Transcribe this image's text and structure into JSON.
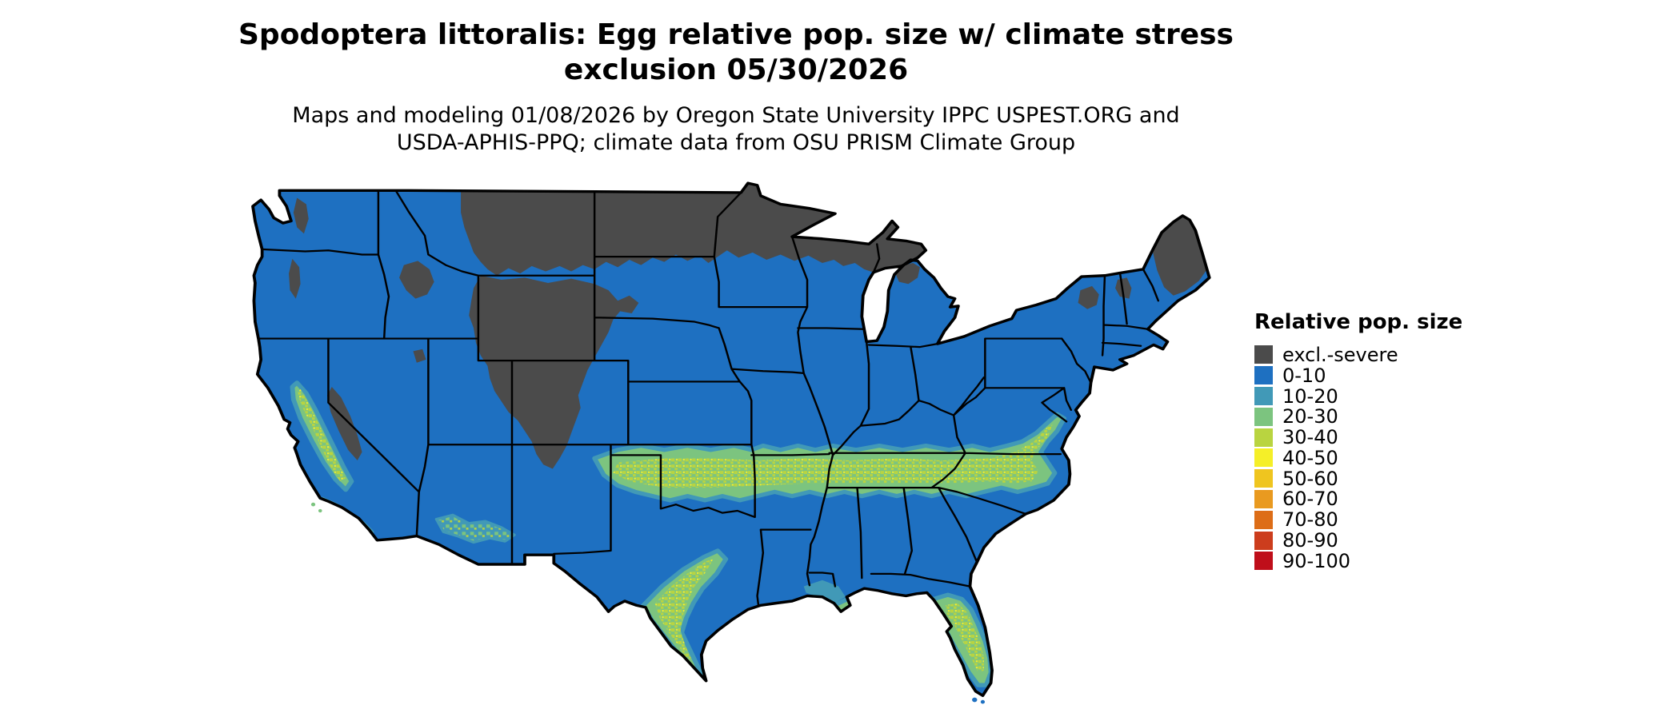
{
  "figure": {
    "title_line1": "Spodoptera littoralis: Egg relative pop. size w/ climate stress",
    "title_line2": "exclusion 05/30/2026",
    "subtitle_line1": "Maps and modeling 01/08/2026 by Oregon State University IPPC USPEST.ORG and",
    "subtitle_line2": "USDA-APHIS-PPQ; climate data from OSU PRISM Climate Group"
  },
  "legend": {
    "title": "Relative pop. size",
    "items": [
      {
        "key": "excl",
        "label": "excl.-severe",
        "color": "#4b4b4b"
      },
      {
        "key": "r0",
        "label": "0-10",
        "color": "#1e70c1"
      },
      {
        "key": "r10",
        "label": "10-20",
        "color": "#4199b7"
      },
      {
        "key": "r20",
        "label": "20-30",
        "color": "#7cc47f"
      },
      {
        "key": "r30",
        "label": "30-40",
        "color": "#b9d440"
      },
      {
        "key": "r40",
        "label": "40-50",
        "color": "#f5ef28"
      },
      {
        "key": "r50",
        "label": "50-60",
        "color": "#efc51f"
      },
      {
        "key": "r60",
        "label": "60-70",
        "color": "#e99a20"
      },
      {
        "key": "r70",
        "label": "70-80",
        "color": "#dd6d17"
      },
      {
        "key": "r80",
        "label": "80-90",
        "color": "#cc3d1d"
      },
      {
        "key": "r90",
        "label": "90-100",
        "color": "#bf0e1a"
      }
    ]
  },
  "map": {
    "region": "Continental United States with state boundaries",
    "dominant_class": "0-10",
    "excluded_severe_areas": "Northern tier (eastern Montana, North Dakota, northern Minnesota, northern Wisconsin, upper Michigan), Rocky Mountains (Wyoming, Colorado), Sierra Nevada, Cascades, northern New England",
    "elevated_20_40_areas": "Southern plains (Oklahoma, Texas), mid-South (Arkansas, Tennessee) into the Carolinas and Virginia, Gulf coast, central Florida, central California valley, southern Arizona"
  }
}
